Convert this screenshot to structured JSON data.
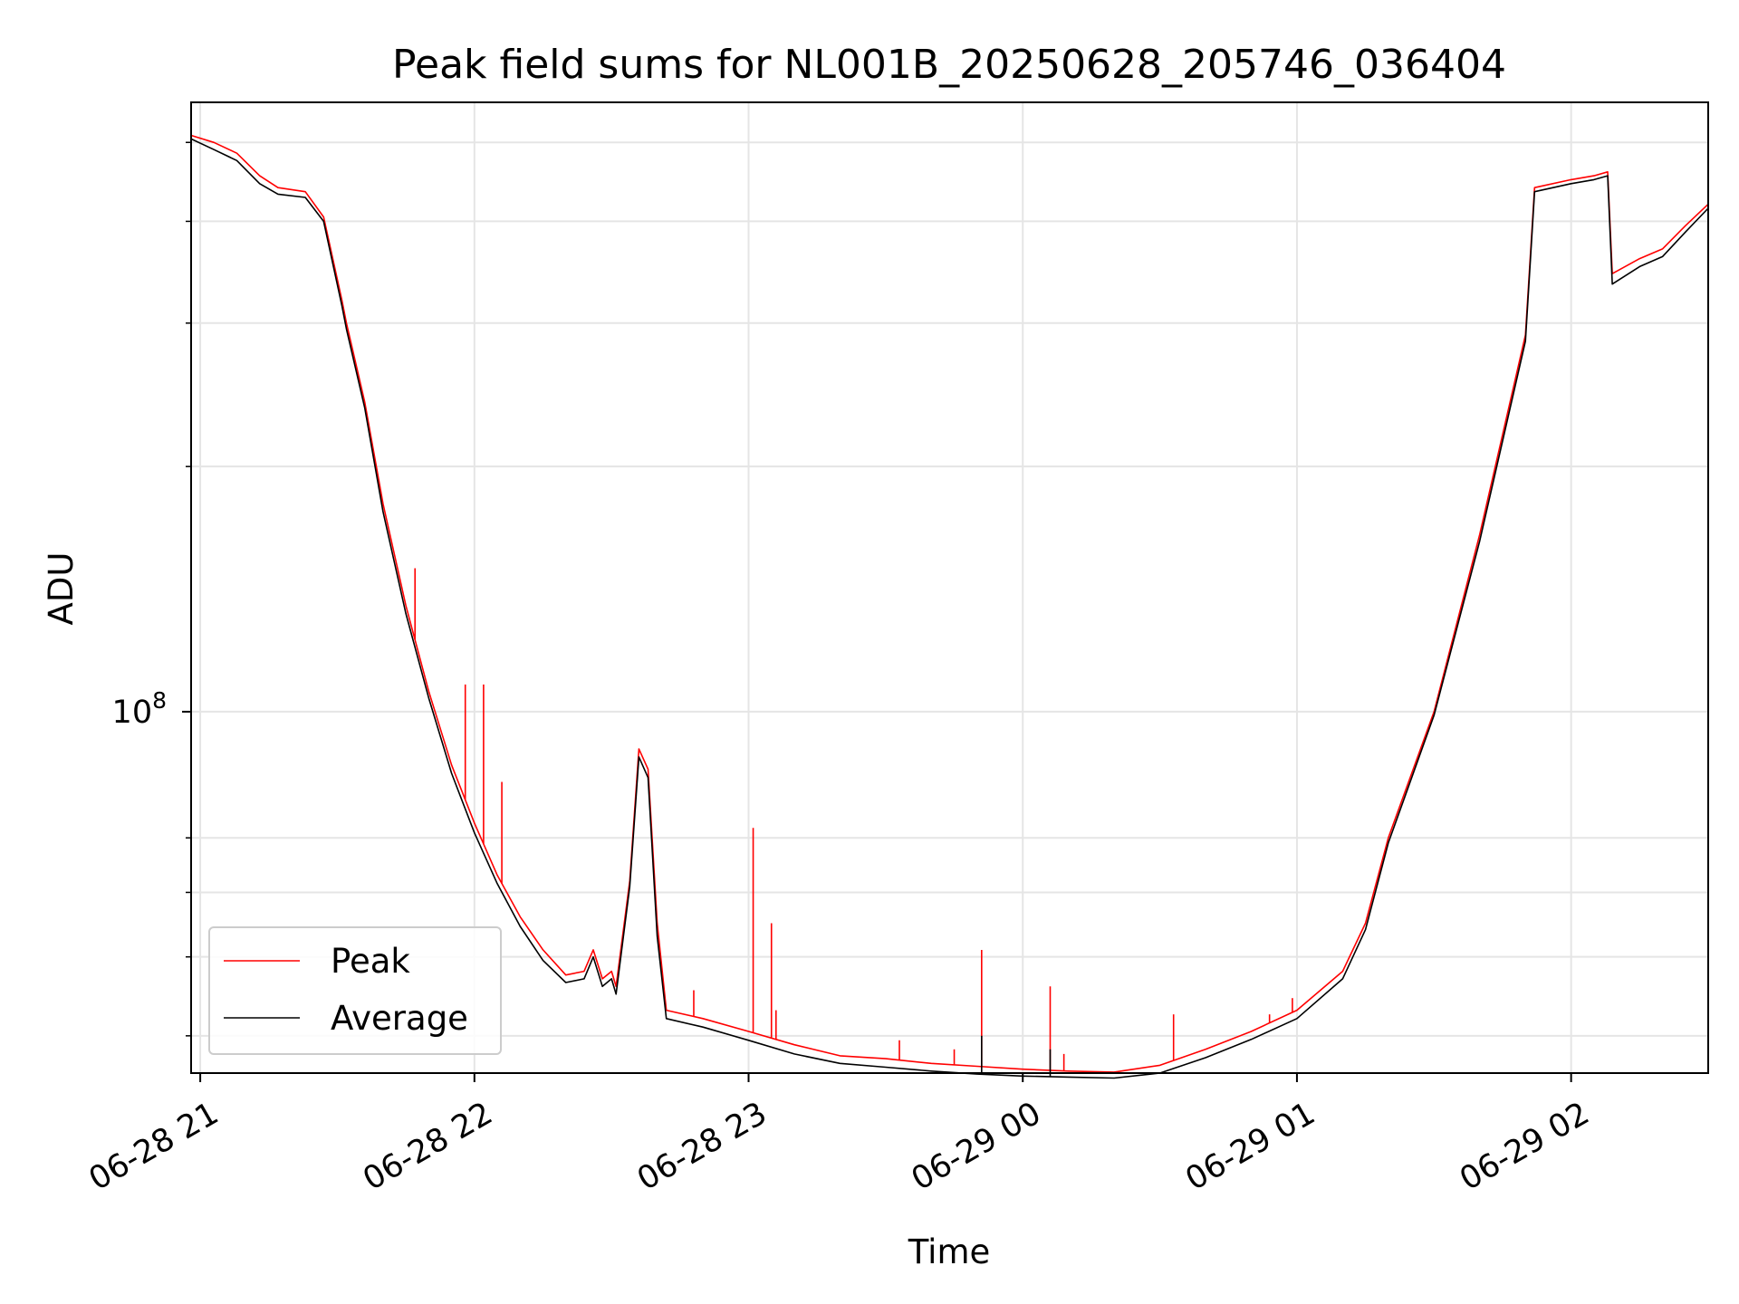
{
  "chart_data": {
    "type": "line",
    "title": "Peak field sums for NL001B_20250628_205746_036404",
    "xlabel": "Time",
    "ylabel": "ADU",
    "yscale": "log",
    "xlim": [
      "2025-06-28T20:58",
      "2025-06-29T02:30"
    ],
    "ylim": [
      36000000,
      560000000
    ],
    "grid": true,
    "legend_position": "lower-left",
    "x_ticks": [
      "06-28 21",
      "06-28 22",
      "06-28 23",
      "06-29 00",
      "06-29 01",
      "06-29 02"
    ],
    "y_ticks": [
      {
        "value": 100000000,
        "base": "10",
        "exp": "8"
      }
    ],
    "y_minor_ticks": [
      40000000,
      50000000,
      60000000,
      70000000,
      200000000,
      300000000,
      400000000,
      500000000
    ],
    "colors": {
      "Peak": "#ff0000",
      "Average": "#000000",
      "grid": "#e5e5e5"
    },
    "series": [
      {
        "name": "Peak",
        "x": [
          "20:58",
          "21:03",
          "21:08",
          "21:13",
          "21:17",
          "21:23",
          "21:27",
          "21:31",
          "21:32",
          "21:36",
          "21:40",
          "21:45",
          "21:50",
          "21:55",
          "22:00",
          "22:05",
          "22:10",
          "22:15",
          "22:20",
          "22:24",
          "22:26",
          "22:28",
          "22:30",
          "22:31",
          "22:34",
          "22:36",
          "22:38",
          "22:40",
          "22:42",
          "22:50",
          "23:00",
          "23:10",
          "23:20",
          "23:30",
          "23:40",
          "23:50",
          "00:00",
          "00:10",
          "00:20",
          "00:30",
          "00:40",
          "00:50",
          "01:00",
          "01:10",
          "01:15",
          "01:20",
          "01:30",
          "01:40",
          "01:50",
          "01:52",
          "02:00",
          "02:05",
          "02:08",
          "02:09",
          "02:15",
          "02:20",
          "02:25",
          "02:30"
        ],
        "y": [
          510000000,
          500000000,
          485000000,
          455000000,
          440000000,
          435000000,
          405000000,
          320000000,
          300000000,
          240000000,
          180000000,
          135000000,
          106000000,
          86000000,
          73000000,
          63000000,
          56000000,
          51000000,
          47500000,
          48000000,
          51000000,
          47000000,
          48000000,
          46000000,
          62000000,
          90000000,
          85000000,
          55000000,
          43000000,
          42000000,
          40500000,
          39000000,
          37800000,
          37500000,
          37000000,
          36700000,
          36400000,
          36200000,
          36100000,
          36800000,
          38500000,
          40500000,
          43000000,
          48000000,
          55000000,
          70000000,
          100000000,
          165000000,
          290000000,
          440000000,
          450000000,
          455000000,
          460000000,
          345000000,
          360000000,
          370000000,
          395000000,
          420000000
        ]
      },
      {
        "name": "Average",
        "x": [
          "20:58",
          "21:03",
          "21:08",
          "21:13",
          "21:17",
          "21:23",
          "21:27",
          "21:31",
          "21:32",
          "21:36",
          "21:40",
          "21:45",
          "21:50",
          "21:55",
          "22:00",
          "22:05",
          "22:10",
          "22:15",
          "22:20",
          "22:24",
          "22:26",
          "22:28",
          "22:30",
          "22:31",
          "22:34",
          "22:36",
          "22:38",
          "22:40",
          "22:42",
          "22:50",
          "23:00",
          "23:10",
          "23:20",
          "23:30",
          "23:40",
          "23:50",
          "00:00",
          "00:10",
          "00:20",
          "00:30",
          "00:40",
          "00:50",
          "01:00",
          "01:10",
          "01:15",
          "01:20",
          "01:30",
          "01:40",
          "01:50",
          "01:52",
          "02:00",
          "02:05",
          "02:08",
          "02:09",
          "02:15",
          "02:20",
          "02:25",
          "02:30"
        ],
        "y": [
          505000000,
          490000000,
          475000000,
          445000000,
          432000000,
          428000000,
          400000000,
          315000000,
          295000000,
          236000000,
          176000000,
          132000000,
          104000000,
          84000000,
          71000000,
          61500000,
          54500000,
          49500000,
          46500000,
          47000000,
          50000000,
          46000000,
          47000000,
          45000000,
          61000000,
          88000000,
          83000000,
          53000000,
          42000000,
          41000000,
          39500000,
          38000000,
          37000000,
          36600000,
          36200000,
          35900000,
          35700000,
          35600000,
          35500000,
          36000000,
          37600000,
          39600000,
          42000000,
          47000000,
          54000000,
          69000000,
          99000000,
          162000000,
          285000000,
          435000000,
          445000000,
          450000000,
          455000000,
          335000000,
          352000000,
          362000000,
          388000000,
          415000000
        ]
      }
    ],
    "spikes": [
      {
        "series": "Peak",
        "x": "21:47",
        "y": 150000000
      },
      {
        "series": "Peak",
        "x": "21:58",
        "y": 108000000
      },
      {
        "series": "Peak",
        "x": "22:02",
        "y": 108000000
      },
      {
        "series": "Peak",
        "x": "22:06",
        "y": 82000000
      },
      {
        "series": "Peak",
        "x": "22:48",
        "y": 45500000
      },
      {
        "series": "Peak",
        "x": "23:01",
        "y": 72000000
      },
      {
        "series": "Peak",
        "x": "23:05",
        "y": 55000000
      },
      {
        "series": "Peak",
        "x": "23:06",
        "y": 43000000
      },
      {
        "series": "Peak",
        "x": "23:33",
        "y": 39500000
      },
      {
        "series": "Peak",
        "x": "23:45",
        "y": 38500000
      },
      {
        "series": "Peak",
        "x": "23:51",
        "y": 51000000
      },
      {
        "series": "Average",
        "x": "23:51",
        "y": 40000000
      },
      {
        "series": "Peak",
        "x": "00:06",
        "y": 46000000
      },
      {
        "series": "Average",
        "x": "00:06",
        "y": 38500000
      },
      {
        "series": "Peak",
        "x": "00:09",
        "y": 38000000
      },
      {
        "series": "Peak",
        "x": "00:33",
        "y": 42500000
      },
      {
        "series": "Peak",
        "x": "00:54",
        "y": 42500000
      },
      {
        "series": "Peak",
        "x": "00:59",
        "y": 44500000
      }
    ],
    "legend": [
      {
        "name": "Peak",
        "color": "#ff0000"
      },
      {
        "name": "Average",
        "color": "#000000"
      }
    ]
  }
}
